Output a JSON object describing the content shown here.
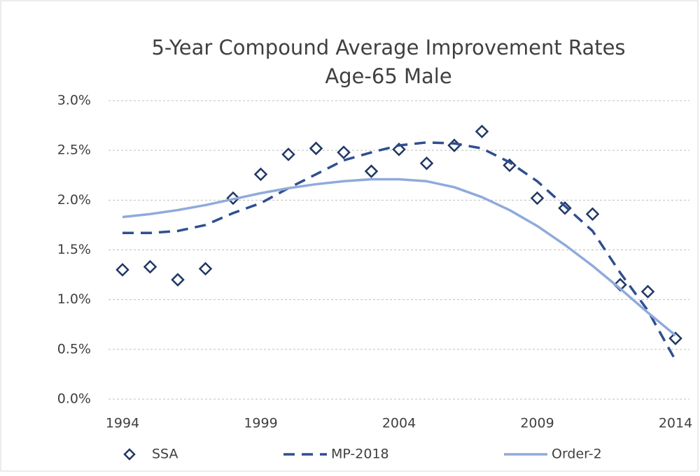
{
  "chart_data": {
    "type": "line",
    "title": "5-Year Compound Average Improvement Rates",
    "subtitle": "Age-65 Male",
    "x": [
      1994,
      1995,
      1996,
      1997,
      1998,
      1999,
      2000,
      2001,
      2002,
      2003,
      2004,
      2005,
      2006,
      2007,
      2008,
      2009,
      2010,
      2011,
      2012,
      2013,
      2014
    ],
    "xlim": [
      1994,
      2014
    ],
    "xticks": [
      1994,
      1999,
      2004,
      2009,
      2014
    ],
    "ylim": [
      0,
      3
    ],
    "yticks": [
      {
        "value": 0,
        "label": "0.0%"
      },
      {
        "value": 0.5,
        "label": "0.5%"
      },
      {
        "value": 1,
        "label": "1.0%"
      },
      {
        "value": 1.5,
        "label": "1.5%"
      },
      {
        "value": 2,
        "label": "2.0%"
      },
      {
        "value": 2.5,
        "label": "2.5%"
      },
      {
        "value": 3,
        "label": "3.0%"
      }
    ],
    "grid": true,
    "legend": "bottom",
    "series": [
      {
        "name": "SSA",
        "color": "#1f3864",
        "style": "markers",
        "values": [
          1.3,
          1.33,
          1.2,
          1.31,
          2.02,
          2.26,
          2.46,
          2.52,
          2.48,
          2.29,
          2.51,
          2.37,
          2.55,
          2.69,
          2.35,
          2.02,
          1.92,
          1.86,
          1.15,
          1.08,
          0.61
        ]
      },
      {
        "name": "MP-2018",
        "color": "#2f4f8f",
        "style": "dashed",
        "values": [
          1.67,
          1.67,
          1.69,
          1.75,
          1.87,
          1.97,
          2.12,
          2.26,
          2.4,
          2.48,
          2.55,
          2.58,
          2.57,
          2.52,
          2.38,
          2.19,
          1.94,
          1.69,
          1.27,
          0.89,
          0.39
        ]
      },
      {
        "name": "Order-2",
        "color": "#8faadc",
        "style": "solid",
        "values": [
          1.83,
          1.86,
          1.9,
          1.95,
          2.01,
          2.07,
          2.12,
          2.16,
          2.19,
          2.21,
          2.21,
          2.19,
          2.13,
          2.03,
          1.9,
          1.74,
          1.55,
          1.34,
          1.11,
          0.87,
          0.64
        ]
      }
    ]
  }
}
